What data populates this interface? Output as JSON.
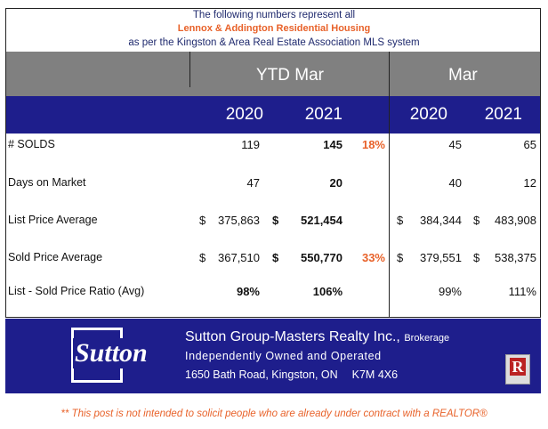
{
  "header": {
    "line1": "The following numbers represent all",
    "line2": "Lennox & Addington Residential Housing",
    "line3": "as per the Kingston & Area Real Estate Association MLS system"
  },
  "groups": {
    "ytd": "YTD Mar",
    "month": "Mar"
  },
  "years": [
    "2020",
    "2021",
    "2020",
    "2021"
  ],
  "rows": [
    {
      "label": "# SOLDS",
      "ytd2020": "119",
      "ytd2021": "145",
      "pct": "18%",
      "mar2020": "45",
      "mar2021": "65"
    },
    {
      "label": "Days on Market",
      "ytd2020": "47",
      "ytd2021": "20",
      "pct": "",
      "mar2020": "40",
      "mar2021": "12"
    },
    {
      "label": "List Price Average",
      "ytd2020": "375,863",
      "ytd2021": "521,454",
      "pct": "",
      "mar2020": "384,344",
      "mar2021": "483,908",
      "currency": "$"
    },
    {
      "label": "Sold Price Average",
      "ytd2020": "367,510",
      "ytd2021": "550,770",
      "pct": "33%",
      "mar2020": "379,551",
      "mar2021": "538,375",
      "currency": "$"
    },
    {
      "label": "List - Sold Price Ratio (Avg)",
      "ytd2020": "98%",
      "ytd2021": "106%",
      "pct": "",
      "mar2020": "99%",
      "mar2021": "111%"
    }
  ],
  "footer": {
    "logo": "Sutton",
    "company": "Sutton Group-Masters Realty Inc.,",
    "brokerage": "Brokerage",
    "tagline": "Independently Owned and Operated",
    "address": "1650 Bath Road, Kingston, ON",
    "postal": "K7M 4X6"
  },
  "disclaimer": "** This post is not intended to solicit people who are already under contract with a REALTOR®",
  "colors": {
    "navy": "#1e1e8c",
    "gray": "#808080",
    "accent": "#e8622a"
  }
}
